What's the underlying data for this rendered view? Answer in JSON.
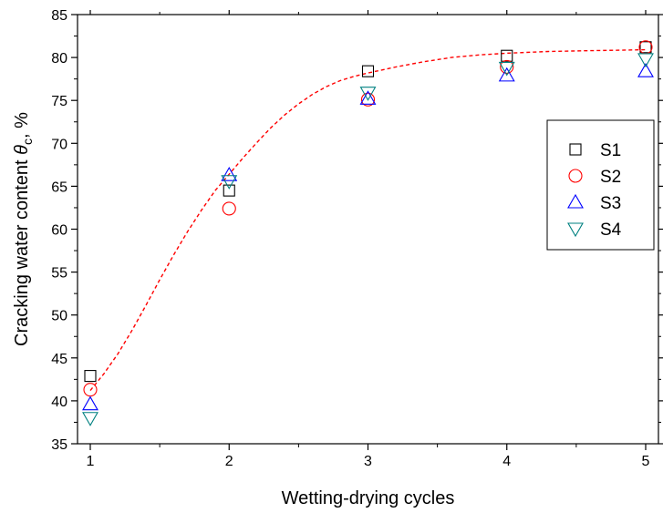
{
  "chart_data": {
    "type": "scatter",
    "xlabel": "Wetting-drying cycles",
    "ylabel_main": "Cracking water content ",
    "ylabel_symbol": "θ",
    "ylabel_subscript": "c",
    "ylabel_unit": ", %",
    "xlim": [
      1,
      5
    ],
    "ylim": [
      35,
      85
    ],
    "x_ticks": [
      "1",
      "2",
      "3",
      "4",
      "5"
    ],
    "y_ticks": [
      "35",
      "40",
      "45",
      "50",
      "55",
      "60",
      "65",
      "70",
      "75",
      "80",
      "85"
    ],
    "grid": false,
    "legend_position": "right",
    "series": [
      {
        "name": "S1",
        "marker": "square",
        "color": "#000000",
        "x": [
          1,
          2,
          3,
          4,
          5
        ],
        "y": [
          42.9,
          64.5,
          78.4,
          80.2,
          81.2
        ]
      },
      {
        "name": "S2",
        "marker": "circle",
        "color": "#ff0000",
        "x": [
          1,
          2,
          3,
          4,
          5
        ],
        "y": [
          41.3,
          62.4,
          75.1,
          78.9,
          81.2
        ]
      },
      {
        "name": "S3",
        "marker": "triangle-up",
        "color": "#0000ff",
        "x": [
          1,
          2,
          3,
          4,
          5
        ],
        "y": [
          39.6,
          66.3,
          75.2,
          77.9,
          78.4
        ]
      },
      {
        "name": "S4",
        "marker": "triangle-down",
        "color": "#008080",
        "x": [
          1,
          2,
          3,
          4,
          5
        ],
        "y": [
          38.0,
          65.6,
          75.9,
          78.8,
          79.8
        ]
      }
    ],
    "fit_curve": {
      "color": "#ff0000",
      "style": "dashed",
      "x": [
        1.0,
        1.1,
        1.2,
        1.3,
        1.4,
        1.5,
        1.6,
        1.7,
        1.8,
        1.9,
        2.0,
        2.1,
        2.2,
        2.3,
        2.4,
        2.5,
        2.6,
        2.7,
        2.8,
        2.9,
        3.0,
        3.2,
        3.4,
        3.6,
        3.8,
        4.0,
        4.3,
        4.6,
        5.0
      ],
      "y": [
        41.2,
        43.2,
        45.5,
        48.2,
        51.1,
        54.1,
        57.0,
        59.7,
        62.2,
        64.5,
        66.4,
        68.3,
        70.1,
        71.8,
        73.3,
        74.6,
        75.7,
        76.6,
        77.3,
        77.8,
        78.2,
        78.9,
        79.5,
        80.0,
        80.3,
        80.5,
        80.7,
        80.8,
        80.9
      ]
    }
  }
}
